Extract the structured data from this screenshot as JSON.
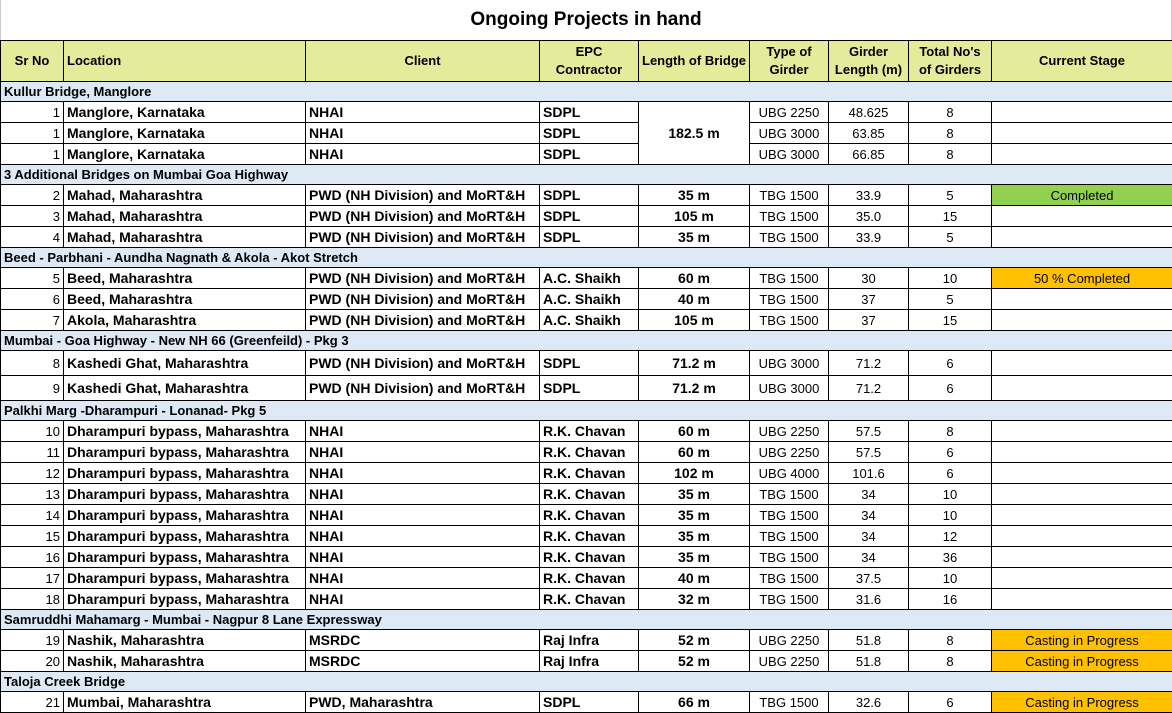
{
  "title": "Ongoing Projects in hand",
  "colors": {
    "header": "#e4ec9c",
    "group": "#dde9f5",
    "completed": "#92d050",
    "in_progress": "#ffc000"
  },
  "headers": [
    "Sr No",
    "Location",
    "Client",
    "EPC Contractor",
    "Length of Bridge",
    "Type of Girder",
    "Girder Length (m)",
    "Total No's of Girders",
    "Current Stage"
  ],
  "groups": [
    {
      "name": "Kullur Bridge, Manglore",
      "merged_length": "182.5 m",
      "rows": [
        [
          "1",
          "Manglore, Karnataka",
          "NHAI",
          "SDPL",
          "",
          "UBG 2250",
          "48.625",
          "8",
          ""
        ],
        [
          "1",
          "Manglore, Karnataka",
          "NHAI",
          "SDPL",
          "",
          "UBG 3000",
          "63.85",
          "8",
          ""
        ],
        [
          "1",
          "Manglore, Karnataka",
          "NHAI",
          "SDPL",
          "",
          "UBG 3000",
          "66.85",
          "8",
          ""
        ]
      ]
    },
    {
      "name": "3 Additional Bridges on Mumbai Goa Highway",
      "rows": [
        [
          "2",
          "Mahad, Maharashtra",
          "PWD (NH Division) and MoRT&H",
          "SDPL",
          "35 m",
          "TBG 1500",
          "33.9",
          "5",
          "Completed"
        ],
        [
          "3",
          "Mahad, Maharashtra",
          "PWD (NH Division) and MoRT&H",
          "SDPL",
          "105 m",
          "TBG 1500",
          "35.0",
          "15",
          ""
        ],
        [
          "4",
          "Mahad, Maharashtra",
          "PWD (NH Division) and MoRT&H",
          "SDPL",
          "35 m",
          "TBG 1500",
          "33.9",
          "5",
          ""
        ]
      ]
    },
    {
      "name": "Beed - Parbhani - Aundha Nagnath & Akola - Akot Stretch",
      "rows": [
        [
          "5",
          "Beed, Maharashtra",
          "PWD (NH Division) and MoRT&H",
          "A.C. Shaikh",
          "60 m",
          "TBG 1500",
          "30",
          "10",
          "50 % Completed"
        ],
        [
          "6",
          "Beed, Maharashtra",
          "PWD (NH Division) and MoRT&H",
          "A.C. Shaikh",
          "40 m",
          "TBG 1500",
          "37",
          "5",
          ""
        ],
        [
          "7",
          "Akola, Maharashtra",
          "PWD (NH Division) and MoRT&H",
          "A.C. Shaikh",
          "105 m",
          "TBG 1500",
          "37",
          "15",
          ""
        ]
      ]
    },
    {
      "name": "Mumbai - Goa Highway - New NH 66 (Greenfeild) - Pkg 3",
      "tall": true,
      "rows": [
        [
          "8",
          "Kashedi Ghat, Maharashtra",
          "PWD (NH Division) and MoRT&H",
          "SDPL",
          "71.2 m",
          "UBG 3000",
          "71.2",
          "6",
          ""
        ],
        [
          "9",
          "Kashedi Ghat, Maharashtra",
          "PWD (NH Division) and MoRT&H",
          "SDPL",
          "71.2 m",
          "UBG 3000",
          "71.2",
          "6",
          ""
        ]
      ]
    },
    {
      "name": "Palkhi Marg -Dharampuri - Lonanad- Pkg 5",
      "rows": [
        [
          "10",
          "Dharampuri bypass, Maharashtra",
          "NHAI",
          "R.K. Chavan",
          "60 m",
          "UBG 2250",
          "57.5",
          "8",
          ""
        ],
        [
          "11",
          "Dharampuri bypass, Maharashtra",
          "NHAI",
          "R.K. Chavan",
          "60 m",
          "UBG 2250",
          "57.5",
          "6",
          ""
        ],
        [
          "12",
          "Dharampuri bypass, Maharashtra",
          "NHAI",
          "R.K. Chavan",
          "102 m",
          "UBG 4000",
          "101.6",
          "6",
          ""
        ],
        [
          "13",
          "Dharampuri bypass, Maharashtra",
          "NHAI",
          "R.K. Chavan",
          "35 m",
          "TBG 1500",
          "34",
          "10",
          ""
        ],
        [
          "14",
          "Dharampuri bypass, Maharashtra",
          "NHAI",
          "R.K. Chavan",
          "35 m",
          "TBG 1500",
          "34",
          "10",
          ""
        ],
        [
          "15",
          "Dharampuri bypass, Maharashtra",
          "NHAI",
          "R.K. Chavan",
          "35 m",
          "TBG 1500",
          "34",
          "12",
          ""
        ],
        [
          "16",
          "Dharampuri bypass, Maharashtra",
          "NHAI",
          "R.K. Chavan",
          "35 m",
          "TBG 1500",
          "34",
          "36",
          ""
        ],
        [
          "17",
          "Dharampuri bypass, Maharashtra",
          "NHAI",
          "R.K. Chavan",
          "40 m",
          "TBG 1500",
          "37.5",
          "10",
          ""
        ],
        [
          "18",
          "Dharampuri bypass, Maharashtra",
          "NHAI",
          "R.K. Chavan",
          "32 m",
          "TBG 1500",
          "31.6",
          "16",
          ""
        ]
      ]
    },
    {
      "name": "Samruddhi Mahamarg - Mumbai - Nagpur 8 Lane Expressway",
      "rows": [
        [
          "19",
          "Nashik, Maharashtra",
          "MSRDC",
          "Raj Infra",
          "52 m",
          "UBG 2250",
          "51.8",
          "8",
          "Casting in Progress"
        ],
        [
          "20",
          "Nashik, Maharashtra",
          "MSRDC",
          "Raj Infra",
          "52 m",
          "UBG 2250",
          "51.8",
          "8",
          "Casting in Progress"
        ]
      ]
    },
    {
      "name": "Taloja Creek Bridge",
      "rows": [
        [
          "21",
          "Mumbai, Maharashtra",
          "PWD, Maharashtra",
          "SDPL",
          "66 m",
          "TBG 1500",
          "32.6",
          "6",
          "Casting in Progress"
        ]
      ]
    }
  ]
}
